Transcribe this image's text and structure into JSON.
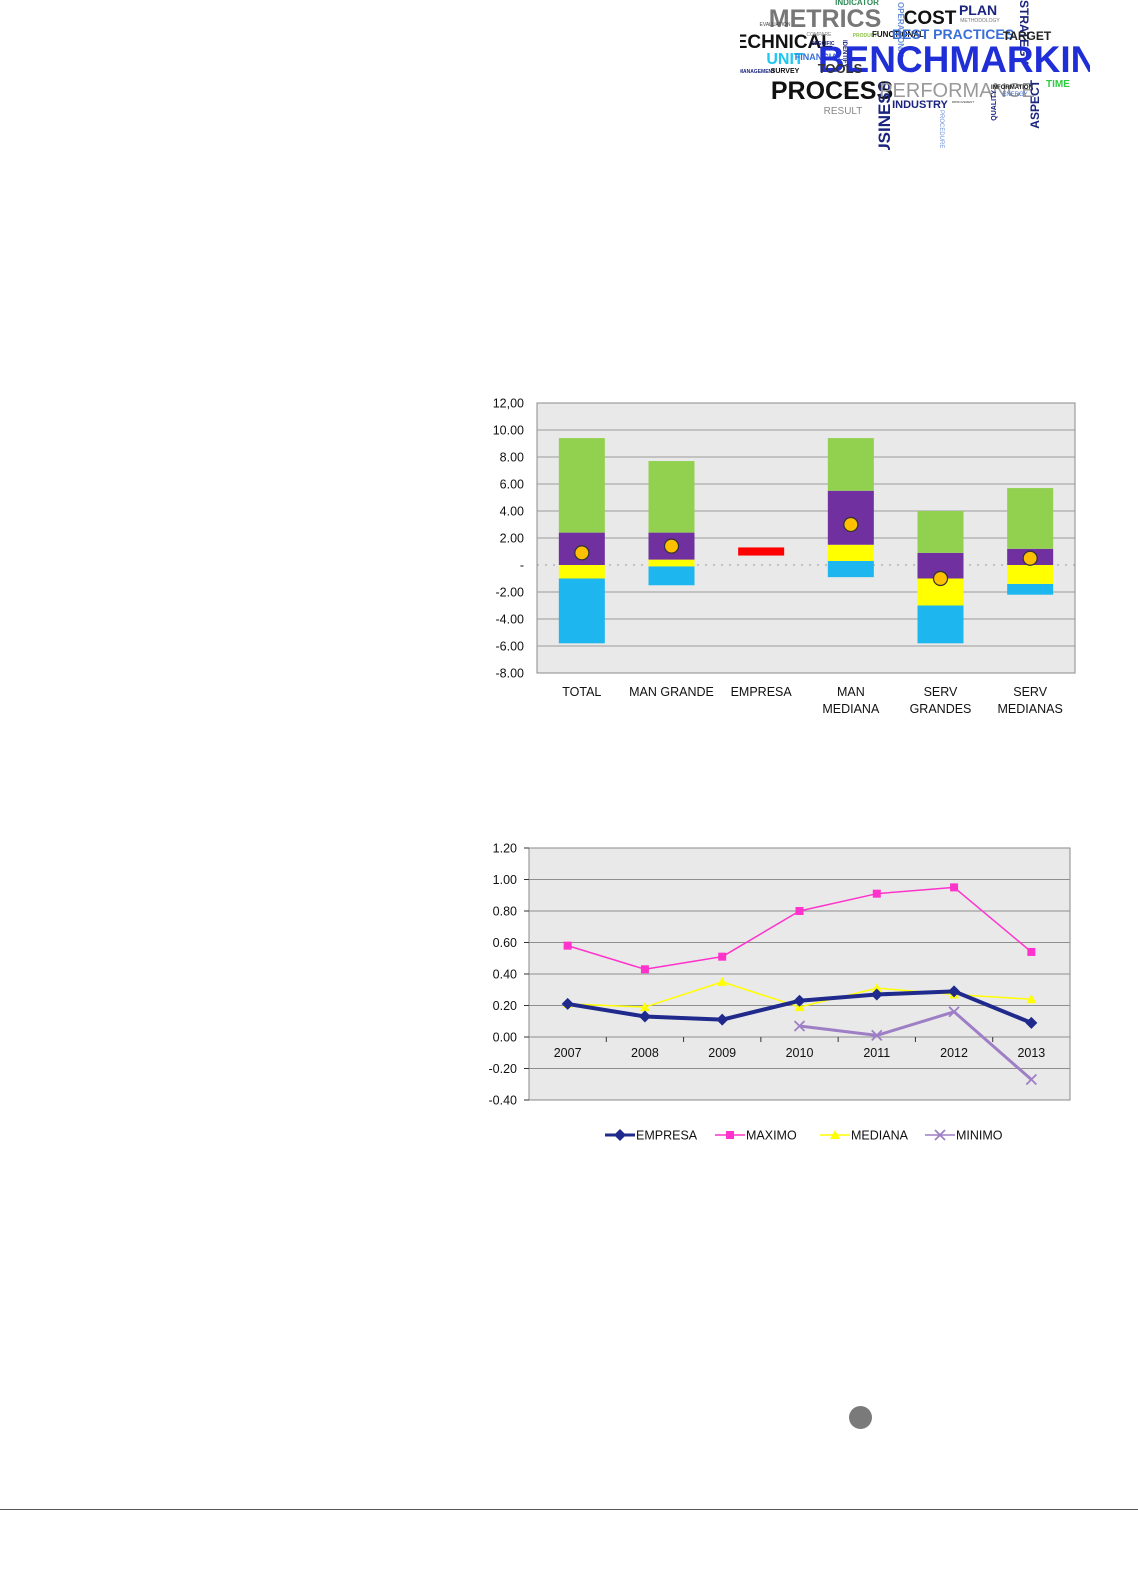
{
  "wordcloud": {
    "words": [
      {
        "text": "INDICATOR"
      },
      {
        "text": "PLAN"
      },
      {
        "text": "METRICS"
      },
      {
        "text": "COST"
      },
      {
        "text": "STRATEGY"
      },
      {
        "text": "EVALUATION"
      },
      {
        "text": "OPERATIONAL"
      },
      {
        "text": "METHODOLOGY"
      },
      {
        "text": "TECHNICAL"
      },
      {
        "text": "COMPARE"
      },
      {
        "text": "SPECIFIC"
      },
      {
        "text": "PRODUCT"
      },
      {
        "text": "FUNCTIONAL"
      },
      {
        "text": "BEST PRACTICES"
      },
      {
        "text": "TARGET"
      },
      {
        "text": "UNIT"
      },
      {
        "text": "FINANCIAL"
      },
      {
        "text": "IDENTIFY"
      },
      {
        "text": "BENCHMARKING"
      },
      {
        "text": "MANAGEMENT"
      },
      {
        "text": "SURVEY"
      },
      {
        "text": "TOOLS"
      },
      {
        "text": "PROCESS"
      },
      {
        "text": "BUSINESS"
      },
      {
        "text": "PERFORMANCE"
      },
      {
        "text": "INFORMATION"
      },
      {
        "text": "TIME"
      },
      {
        "text": "ENERGY"
      },
      {
        "text": "RESULT"
      },
      {
        "text": "INDUSTRY"
      },
      {
        "text": "IMPROVEMENT"
      },
      {
        "text": "PROCEDURE"
      },
      {
        "text": "QUALITY"
      },
      {
        "text": "ASPECT"
      }
    ]
  },
  "chart_data": [
    {
      "type": "bar",
      "subtype": "stacked-range-with-marker",
      "categories": [
        "TOTAL",
        "MAN GRANDE",
        "EMPRESA",
        "MAN\nMEDIANA",
        "SERV\nGRANDES",
        "SERV\nMEDIANAS"
      ],
      "yticks": [
        "12,00",
        "10.00",
        "8.00",
        "6.00",
        "4.00",
        "2.00",
        "-",
        "-2.00",
        "-4.00",
        "-6.00",
        "-8.00"
      ],
      "ylim": [
        -8,
        12
      ],
      "grid": true,
      "legend": "none",
      "colors": {
        "light_blue": "#1eb6ee",
        "yellow": "#ffff00",
        "purple": "#7030a0",
        "green": "#92d050",
        "red": "#ff0000",
        "marker": "#ffc000",
        "plot_bg": "#e9e9e9"
      },
      "segments": [
        {
          "category": "TOTAL",
          "ranges": [
            {
              "color": "light_blue",
              "from": -5.8,
              "to": -1.0
            },
            {
              "color": "yellow",
              "from": -1.0,
              "to": 0
            },
            {
              "color": "purple",
              "from": 0,
              "to": 2.4
            },
            {
              "color": "green",
              "from": 2.4,
              "to": 9.4
            }
          ]
        },
        {
          "category": "MAN GRANDE",
          "ranges": [
            {
              "color": "light_blue",
              "from": -1.5,
              "to": -0.1
            },
            {
              "color": "yellow",
              "from": -0.1,
              "to": 0.4
            },
            {
              "color": "purple",
              "from": 0.4,
              "to": 2.4
            },
            {
              "color": "green",
              "from": 2.4,
              "to": 7.7
            }
          ]
        },
        {
          "category": "EMPRESA",
          "ranges": [
            {
              "color": "red",
              "from": 0.7,
              "to": 1.3
            }
          ]
        },
        {
          "category": "MAN\nMEDIANA",
          "ranges": [
            {
              "color": "light_blue",
              "from": -0.9,
              "to": 0.3
            },
            {
              "color": "yellow",
              "from": 0.3,
              "to": 1.5
            },
            {
              "color": "purple",
              "from": 1.5,
              "to": 5.5
            },
            {
              "color": "green",
              "from": 5.5,
              "to": 9.4
            }
          ]
        },
        {
          "category": "SERV\nGRANDES",
          "ranges": [
            {
              "color": "light_blue",
              "from": -5.8,
              "to": -3.0
            },
            {
              "color": "yellow",
              "from": -3.0,
              "to": -1.0
            },
            {
              "color": "purple",
              "from": -1.0,
              "to": 0.9
            },
            {
              "color": "green",
              "from": 0.9,
              "to": 4.0
            }
          ]
        },
        {
          "category": "SERV\nMEDIANAS",
          "ranges": [
            {
              "color": "light_blue",
              "from": -2.2,
              "to": -1.4
            },
            {
              "color": "yellow",
              "from": -1.4,
              "to": 0
            },
            {
              "color": "purple",
              "from": 0,
              "to": 1.2
            },
            {
              "color": "green",
              "from": 1.2,
              "to": 5.7
            }
          ]
        }
      ],
      "markers": [
        {
          "category": "TOTAL",
          "value": 0.9
        },
        {
          "category": "MAN GRANDE",
          "value": 1.4
        },
        {
          "category": "MAN\nMEDIANA",
          "value": 3.0
        },
        {
          "category": "SERV\nGRANDES",
          "value": -1.0
        },
        {
          "category": "SERV\nMEDIANAS",
          "value": 0.5
        }
      ]
    },
    {
      "type": "line",
      "x": [
        "2007",
        "2008",
        "2009",
        "2010",
        "2011",
        "2012",
        "2013"
      ],
      "yticks": [
        "1.20",
        "1.00",
        "0.80",
        "0.60",
        "0.40",
        "0.20",
        "0.00",
        "-0.20",
        "-0.40"
      ],
      "ylim": [
        -0.4,
        1.2
      ],
      "grid": true,
      "legend": "bottom",
      "series": [
        {
          "name": "EMPRESA",
          "color": "#1f2a8c",
          "marker": "diamond",
          "values": [
            0.21,
            0.13,
            0.11,
            0.23,
            0.27,
            0.29,
            0.09
          ]
        },
        {
          "name": "MAXIMO",
          "color": "#ff33cc",
          "marker": "square",
          "values": [
            0.58,
            0.43,
            0.51,
            0.8,
            0.91,
            0.95,
            0.54
          ]
        },
        {
          "name": "MEDIANA",
          "color": "#ffff00",
          "marker": "triangle",
          "values": [
            0.21,
            0.19,
            0.35,
            0.19,
            0.31,
            0.27,
            0.24
          ]
        },
        {
          "name": "MINIMO",
          "color": "#9e7fc6",
          "marker": "x",
          "values": [
            null,
            null,
            null,
            0.07,
            0.01,
            0.16,
            -0.27
          ]
        }
      ]
    }
  ]
}
